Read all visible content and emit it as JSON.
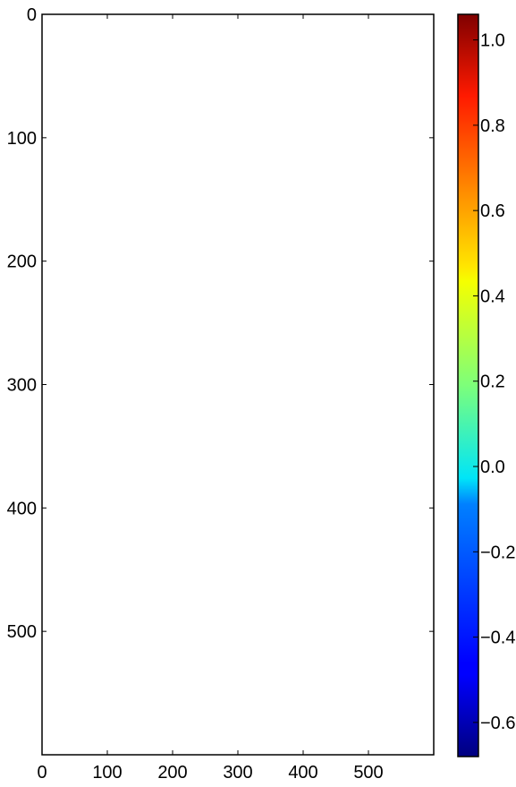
{
  "chart_data": {
    "type": "heatmap",
    "title": "",
    "xlabel": "",
    "ylabel": "",
    "xlim": [
      0,
      600
    ],
    "ylim": [
      600,
      0
    ],
    "y_inverted": true,
    "grid": false,
    "x_ticks": [
      {
        "value": 0,
        "label": "0"
      },
      {
        "value": 100,
        "label": "100"
      },
      {
        "value": 200,
        "label": "200"
      },
      {
        "value": 300,
        "label": "300"
      },
      {
        "value": 400,
        "label": "400"
      },
      {
        "value": 500,
        "label": "500"
      }
    ],
    "y_ticks": [
      {
        "value": 0,
        "label": "0"
      },
      {
        "value": 100,
        "label": "100"
      },
      {
        "value": 200,
        "label": "200"
      },
      {
        "value": 300,
        "label": "300"
      },
      {
        "value": 400,
        "label": "400"
      },
      {
        "value": 500,
        "label": "500"
      }
    ],
    "image_content": "blank",
    "colorbar": {
      "colormap": "jet",
      "vmin": -0.68,
      "vmax": 1.06,
      "ticks": [
        {
          "value": 1.0,
          "label": "1.0"
        },
        {
          "value": 0.8,
          "label": "0.8"
        },
        {
          "value": 0.6,
          "label": "0.6"
        },
        {
          "value": 0.4,
          "label": "0.4"
        },
        {
          "value": 0.2,
          "label": "0.2"
        },
        {
          "value": 0.0,
          "label": "0.0"
        },
        {
          "value": -0.2,
          "label": "−0.2"
        },
        {
          "value": -0.4,
          "label": "−0.4"
        },
        {
          "value": -0.6,
          "label": "−0.6"
        }
      ]
    }
  }
}
